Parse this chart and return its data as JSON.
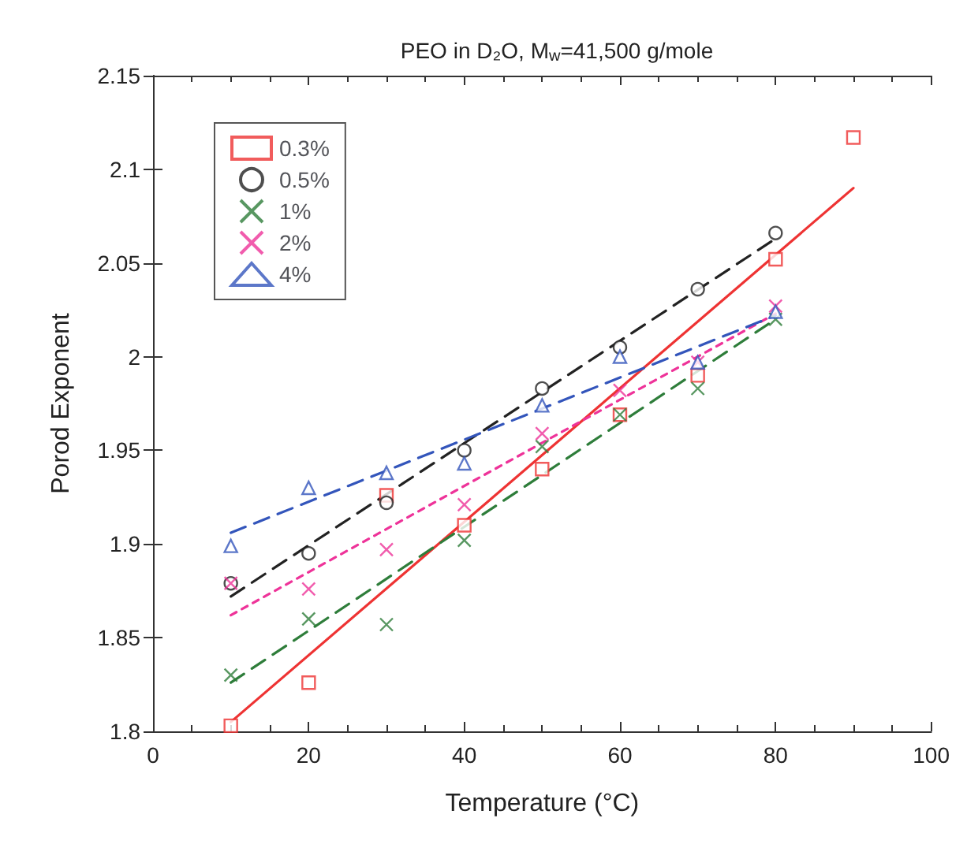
{
  "chart_data": {
    "type": "scatter",
    "title": "PEO in D₂O, M$_{w}$=41,500 g/mole",
    "xlabel": "Temperature (°C)",
    "ylabel": "Porod Exponent",
    "xlim": [
      0,
      100
    ],
    "xticks": [
      0,
      20,
      40,
      60,
      80,
      100
    ],
    "ylim": [
      1.8,
      2.15
    ],
    "yticks": [
      1.8,
      1.85,
      1.9,
      1.95,
      2,
      2.05,
      2.1,
      2.15
    ],
    "grid": false,
    "legend": "top left",
    "series": [
      {
        "name": "0.3%",
        "color": "#ee3333",
        "marker": "square",
        "x": [
          10,
          20,
          30,
          40,
          50,
          60,
          70,
          80,
          90
        ],
        "values": [
          1.803,
          1.826,
          1.926,
          1.91,
          1.94,
          1.969,
          1.99,
          2.052,
          2.117
        ]
      },
      {
        "name": "0.5%",
        "color": "#222222",
        "marker": "circle",
        "x": [
          10,
          20,
          30,
          40,
          50,
          60,
          70,
          80
        ],
        "values": [
          1.879,
          1.895,
          1.922,
          1.95,
          1.983,
          2.005,
          2.036,
          2.066
        ]
      },
      {
        "name": "1%",
        "color": "#2e7d3a",
        "marker": "cross",
        "x": [
          10,
          20,
          30,
          40,
          50,
          60,
          70,
          80
        ],
        "values": [
          1.83,
          1.86,
          1.857,
          1.902,
          1.952,
          1.969,
          1.983,
          2.02
        ]
      },
      {
        "name": "2%",
        "color": "#ee3399",
        "marker": "cross",
        "x": [
          10,
          20,
          30,
          40,
          50,
          60,
          70,
          80
        ],
        "values": [
          1.879,
          1.876,
          1.897,
          1.921,
          1.959,
          1.982,
          1.997,
          2.027
        ]
      },
      {
        "name": "4%",
        "color": "#3355bb",
        "marker": "triangle",
        "x": [
          10,
          20,
          30,
          40,
          50,
          60,
          70,
          80
        ],
        "values": [
          1.899,
          1.93,
          1.938,
          1.943,
          1.974,
          2.0,
          1.997,
          2.024
        ]
      },
      {
        "type": "line",
        "color": "#ee3333",
        "line_style": "solid",
        "marker": "none",
        "x": [
          10,
          90
        ],
        "values": [
          1.805,
          2.09
        ]
      },
      {
        "type": "line",
        "color": "#222222",
        "line_style": "dashed",
        "marker": "none",
        "x": [
          10,
          80
        ],
        "values": [
          1.872,
          2.063
        ]
      },
      {
        "type": "line",
        "color": "#2e7d3a",
        "line_style": "dashed",
        "marker": "none",
        "x": [
          10,
          80
        ],
        "values": [
          1.826,
          2.02
        ]
      },
      {
        "type": "line",
        "color": "#ee3399",
        "line_style": "dotted",
        "marker": "none",
        "x": [
          10,
          80
        ],
        "values": [
          1.862,
          2.023
        ]
      },
      {
        "type": "line",
        "color": "#3355bb",
        "line_style": "dashed",
        "marker": "none",
        "x": [
          10,
          80
        ],
        "values": [
          1.906,
          2.022
        ]
      }
    ]
  }
}
